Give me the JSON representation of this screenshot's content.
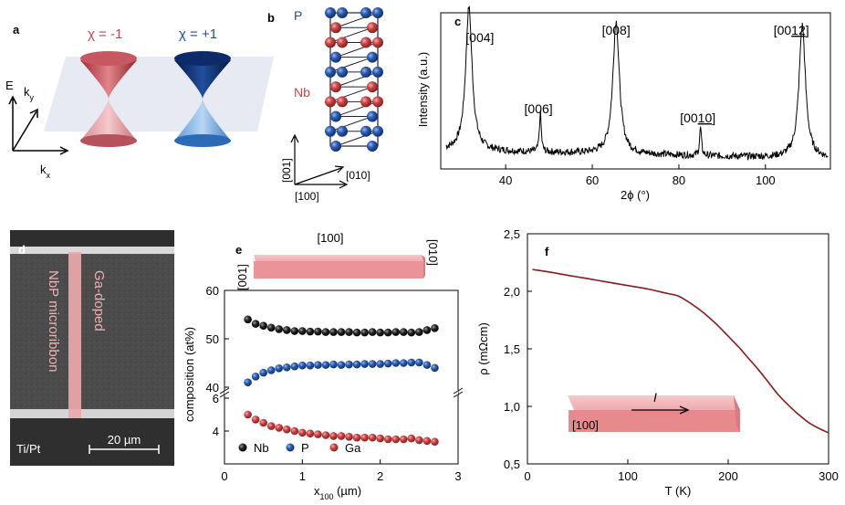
{
  "panels": {
    "a": "a",
    "b": "b",
    "c": "c",
    "d": "d",
    "e": "e",
    "f": "f"
  },
  "panel_a": {
    "chi_minus": "χ = -1",
    "chi_plus": "χ = +1",
    "E": "E",
    "kx": "k",
    "kx_sub": "x",
    "ky": "k",
    "ky_sub": "y",
    "colors": {
      "red": "#c8464f",
      "blue": "#1d4fa5"
    }
  },
  "panel_b": {
    "P": "P",
    "Nb": "Nb",
    "dir_001": "[001]",
    "dir_010": "[010]",
    "dir_100": "[100]"
  },
  "panel_d": {
    "label1": "NbP microribbon",
    "label2": "Ga-doped",
    "electrode": "Ti/Pt",
    "scalebar": "20 µm"
  },
  "panel_e_box": {
    "top": "[100]",
    "left": "[001]",
    "right": "[010]"
  },
  "panel_f_box": {
    "current": "I",
    "dir": "[100]"
  },
  "chart_data": [
    {
      "id": "c",
      "type": "line",
      "xlabel": "2ϕ (°)",
      "ylabel": "Intensity (a.u.)",
      "xlim": [
        25,
        115
      ],
      "xticks": [
        40,
        60,
        80,
        100
      ],
      "peaks": [
        {
          "label": "[004]",
          "x": 31.5,
          "h": 0.92
        },
        {
          "label": "[006]",
          "x": 48.0,
          "h": 0.25
        },
        {
          "label": "[008]",
          "x": 65.5,
          "h": 0.85
        },
        {
          "label": "[0010]",
          "x": 85.0,
          "h": 0.18
        },
        {
          "label": "[0012]",
          "x": 108.5,
          "h": 0.85
        }
      ],
      "color": "#000000"
    },
    {
      "id": "e",
      "type": "scatter",
      "xlabel": "x100 (µm)",
      "ylabel": "composition (at%)",
      "xlim": [
        0,
        3
      ],
      "xticks": [
        0,
        1,
        2,
        3
      ],
      "upper_ylim": [
        40,
        60
      ],
      "upper_yticks": [
        40,
        50,
        60
      ],
      "lower_ylim": [
        2,
        6
      ],
      "lower_yticks": [
        4,
        6
      ],
      "x": [
        0.3,
        0.4,
        0.5,
        0.6,
        0.7,
        0.8,
        0.9,
        1.0,
        1.1,
        1.2,
        1.3,
        1.4,
        1.5,
        1.6,
        1.7,
        1.8,
        1.9,
        2.0,
        2.1,
        2.2,
        2.3,
        2.4,
        2.5,
        2.6,
        2.7
      ],
      "series": [
        {
          "name": "Nb",
          "color": "#111111",
          "values": [
            54.0,
            53.1,
            52.7,
            52.3,
            52.0,
            51.8,
            51.6,
            51.6,
            51.5,
            51.5,
            51.4,
            51.4,
            51.4,
            51.4,
            51.3,
            51.3,
            51.4,
            51.3,
            51.3,
            51.4,
            51.4,
            51.3,
            51.4,
            51.8,
            52.2
          ]
        },
        {
          "name": "P",
          "color": "#2b6cb8",
          "values": [
            41.0,
            42.2,
            43.0,
            43.5,
            43.9,
            44.1,
            44.3,
            44.5,
            44.5,
            44.6,
            44.6,
            44.7,
            44.6,
            44.7,
            44.7,
            44.8,
            44.8,
            44.8,
            44.9,
            45.0,
            45.0,
            45.1,
            45.1,
            44.6,
            44.0
          ]
        },
        {
          "name": "Ga",
          "color": "#c53a3e",
          "values": [
            5.0,
            4.7,
            4.5,
            4.3,
            4.2,
            4.1,
            4.0,
            3.9,
            3.85,
            3.8,
            3.75,
            3.7,
            3.7,
            3.65,
            3.6,
            3.6,
            3.6,
            3.55,
            3.5,
            3.5,
            3.5,
            3.55,
            3.45,
            3.4,
            3.35
          ]
        }
      ]
    },
    {
      "id": "f",
      "type": "line",
      "xlabel": "T (K)",
      "ylabel": "ρ (mΩcm)",
      "xlim": [
        0,
        300
      ],
      "ylim": [
        0.5,
        2.5
      ],
      "xticks": [
        0,
        100,
        200,
        300
      ],
      "yticks": [
        "0,5",
        "1,0",
        "1,5",
        "2,0",
        "2,5"
      ],
      "ytick_values": [
        0.5,
        1.0,
        1.5,
        2.0,
        2.5
      ],
      "color": "#8b1a1a",
      "x": [
        5,
        20,
        40,
        60,
        80,
        100,
        120,
        140,
        150,
        160,
        170,
        180,
        190,
        200,
        210,
        220,
        230,
        240,
        250,
        260,
        270,
        280,
        290,
        300
      ],
      "values": [
        2.19,
        2.17,
        2.14,
        2.11,
        2.08,
        2.05,
        2.02,
        1.98,
        1.96,
        1.91,
        1.85,
        1.78,
        1.7,
        1.61,
        1.52,
        1.42,
        1.32,
        1.21,
        1.1,
        1.01,
        0.93,
        0.86,
        0.81,
        0.77
      ]
    }
  ]
}
